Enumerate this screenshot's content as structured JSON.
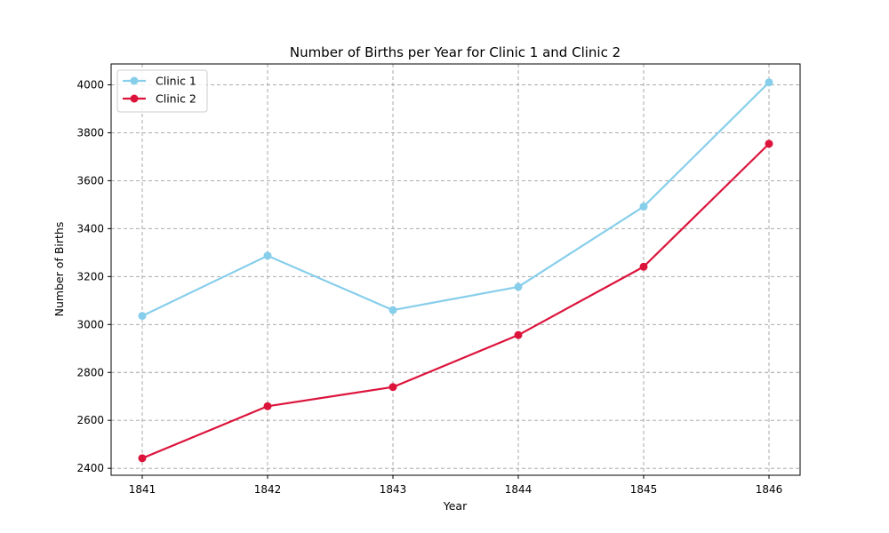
{
  "chart_data": {
    "type": "line",
    "title": "Number of Births per Year for Clinic 1 and Clinic 2",
    "xlabel": "Year",
    "ylabel": "Number of Births",
    "x": [
      1841,
      1842,
      1843,
      1844,
      1845,
      1846
    ],
    "xticks": [
      "1841",
      "1842",
      "1843",
      "1844",
      "1845",
      "1846"
    ],
    "yticks": [
      "2400",
      "2600",
      "2800",
      "3000",
      "3200",
      "3400",
      "3600",
      "3800",
      "4000"
    ],
    "ylim": [
      2371,
      4087
    ],
    "grid": true,
    "legend_position": "top-left",
    "series": [
      {
        "name": "Clinic 1",
        "color": "#87CEEB",
        "values": [
          3036,
          3287,
          3060,
          3157,
          3492,
          4010
        ]
      },
      {
        "name": "Clinic 2",
        "color": "#DC143C",
        "values": [
          2442,
          2659,
          2739,
          2956,
          3241,
          3754
        ]
      }
    ]
  }
}
